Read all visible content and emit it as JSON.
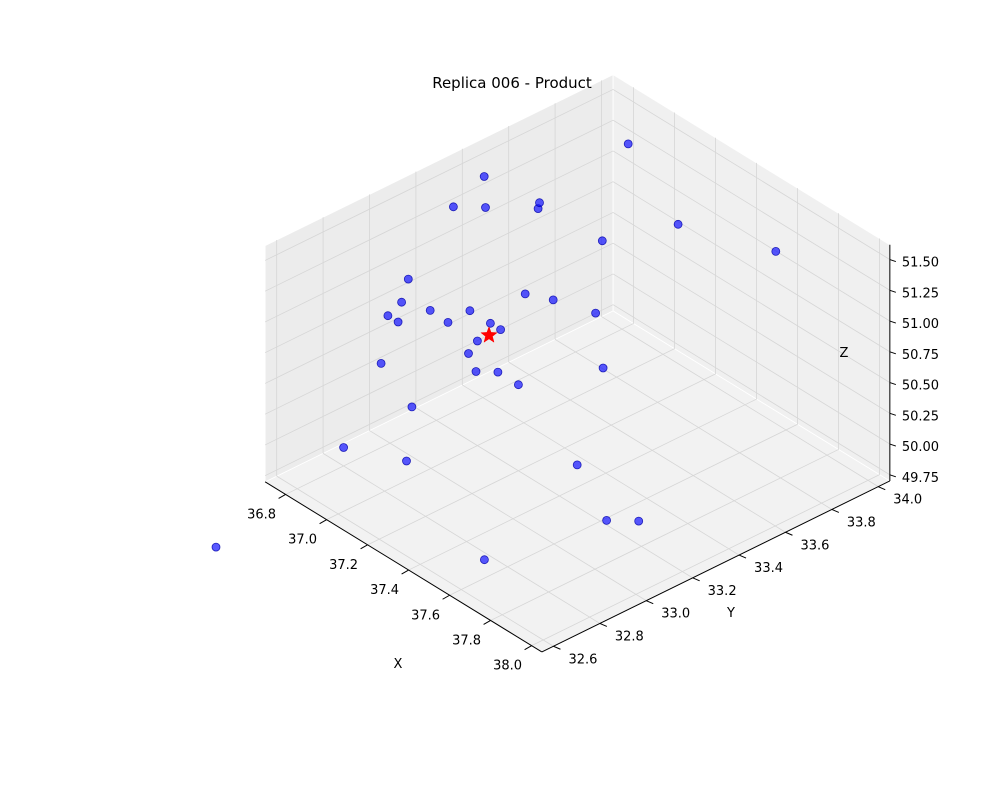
{
  "chart_data": {
    "type": "scatter3d",
    "title": "Replica 006 - Product",
    "xlabel": "X",
    "ylabel": "Y",
    "zlabel": "Z",
    "xticks": [
      "36.8",
      "37.0",
      "37.2",
      "37.4",
      "37.6",
      "37.8",
      "38.0"
    ],
    "yticks": [
      "32.6",
      "32.8",
      "33.0",
      "33.2",
      "33.4",
      "33.6",
      "33.8",
      "34.0"
    ],
    "zticks": [
      "49.75",
      "50.00",
      "50.25",
      "50.50",
      "50.75",
      "51.00",
      "51.25",
      "51.50"
    ],
    "grid": true,
    "colors": {
      "points": "#0000ff",
      "marker": "#ff0000",
      "pane": "#f2f2f2",
      "grid": "#d6d6d6"
    },
    "series": [
      {
        "marker": "circle",
        "color": "#0000ff",
        "points": [
          {
            "x": 36.75,
            "y": 33.45,
            "z": 51.4
          },
          {
            "x": 37.0,
            "y": 33.85,
            "z": 51.55
          },
          {
            "x": 37.2,
            "y": 33.35,
            "z": 50.95
          },
          {
            "x": 37.5,
            "y": 33.3,
            "z": 50.75
          },
          {
            "x": 37.3,
            "y": 33.8,
            "z": 51.25
          },
          {
            "x": 37.55,
            "y": 34.0,
            "z": 51.1
          },
          {
            "x": 36.9,
            "y": 33.55,
            "z": 51.2
          },
          {
            "x": 36.85,
            "y": 33.6,
            "z": 51.15
          },
          {
            "x": 36.7,
            "y": 33.5,
            "z": 51.05
          },
          {
            "x": 37.1,
            "y": 33.65,
            "z": 51.05
          },
          {
            "x": 37.35,
            "y": 33.4,
            "z": 50.95
          },
          {
            "x": 36.8,
            "y": 33.05,
            "z": 50.8
          },
          {
            "x": 36.6,
            "y": 33.45,
            "z": 51.0
          },
          {
            "x": 37.0,
            "y": 33.2,
            "z": 50.55
          },
          {
            "x": 36.95,
            "y": 33.3,
            "z": 50.55
          },
          {
            "x": 36.85,
            "y": 33.3,
            "z": 50.55
          },
          {
            "x": 36.8,
            "y": 33.25,
            "z": 50.45
          },
          {
            "x": 37.05,
            "y": 33.15,
            "z": 50.4
          },
          {
            "x": 37.1,
            "y": 33.2,
            "z": 50.4
          },
          {
            "x": 37.0,
            "y": 33.3,
            "z": 50.55
          },
          {
            "x": 37.2,
            "y": 33.2,
            "z": 50.4
          },
          {
            "x": 36.95,
            "y": 33.45,
            "z": 50.65
          },
          {
            "x": 37.6,
            "y": 33.1,
            "z": 50.25
          },
          {
            "x": 37.9,
            "y": 33.1,
            "z": 50.1
          },
          {
            "x": 37.8,
            "y": 33.05,
            "z": 50.05
          },
          {
            "x": 36.9,
            "y": 33.25,
            "z": 50.3
          },
          {
            "x": 36.55,
            "y": 33.3,
            "z": 50.5
          },
          {
            "x": 36.7,
            "y": 33.05,
            "z": 50.2
          },
          {
            "x": 36.6,
            "y": 33.35,
            "z": 50.25
          },
          {
            "x": 36.5,
            "y": 33.3,
            "z": 50.1
          },
          {
            "x": 36.45,
            "y": 33.3,
            "z": 50.1
          },
          {
            "x": 36.85,
            "y": 33.05,
            "z": 50.0
          },
          {
            "x": 37.05,
            "y": 32.85,
            "z": 49.95
          },
          {
            "x": 36.8,
            "y": 32.8,
            "z": 49.85
          },
          {
            "x": 37.6,
            "y": 32.7,
            "z": 49.85
          },
          {
            "x": 36.8,
            "y": 32.25,
            "z": 49.55
          }
        ]
      },
      {
        "marker": "star",
        "color": "#ff0000",
        "points": [
          {
            "x": 37.0,
            "y": 33.25,
            "z": 50.55
          }
        ]
      }
    ]
  }
}
